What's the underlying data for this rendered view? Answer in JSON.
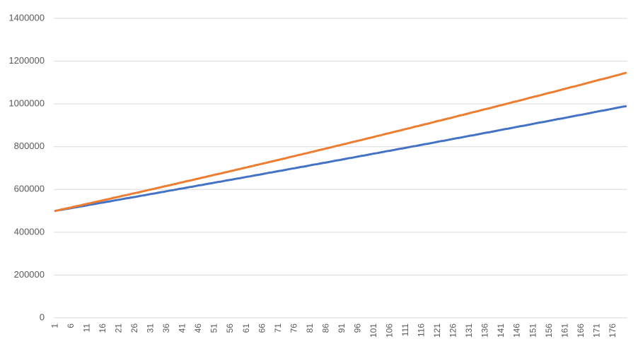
{
  "chart_data": {
    "type": "line",
    "categories": [
      1,
      null,
      null,
      null,
      null,
      6,
      null,
      null,
      null,
      null,
      11,
      null,
      null,
      null,
      null,
      16,
      null,
      null,
      null,
      null,
      21,
      null,
      null,
      null,
      null,
      26,
      null,
      null,
      null,
      null,
      31,
      null,
      null,
      null,
      null,
      36,
      null,
      null,
      null,
      null,
      41,
      null,
      null,
      null,
      null,
      46,
      null,
      null,
      null,
      null,
      51,
      null,
      null,
      null,
      null,
      56,
      null,
      null,
      null,
      null,
      61,
      null,
      null,
      null,
      null,
      66,
      null,
      null,
      null,
      null,
      71,
      null,
      null,
      null,
      null,
      76,
      null,
      null,
      null,
      null,
      81,
      null,
      null,
      null,
      null,
      86,
      null,
      null,
      null,
      null,
      91,
      null,
      null,
      null,
      null,
      96,
      null,
      null,
      null,
      null,
      101,
      null,
      null,
      null,
      null,
      106,
      null,
      null,
      null,
      null,
      111,
      null,
      null,
      null,
      null,
      116,
      null,
      null,
      null,
      null,
      121,
      null,
      null,
      null,
      null,
      126,
      null,
      null,
      null,
      null,
      131,
      null,
      null,
      null,
      null,
      136,
      null,
      null,
      null,
      null,
      141,
      null,
      null,
      null,
      null,
      146,
      null,
      null,
      null,
      null,
      151,
      null,
      null,
      null,
      null,
      156,
      null,
      null,
      null,
      null,
      161,
      null,
      null,
      null,
      null,
      166,
      null,
      null,
      null,
      null,
      171,
      null,
      null,
      null,
      null,
      176,
      null,
      null,
      null,
      null
    ],
    "series": [
      {
        "color": "#4472c4",
        "values": [
          500000,
          503000,
          505000,
          508000,
          510000,
          513000,
          516000,
          518000,
          521000,
          523000,
          526000,
          529000,
          531000,
          534000,
          537000,
          539000,
          542000,
          544000,
          547000,
          550000,
          552000,
          555000,
          558000,
          560000,
          563000,
          565000,
          568000,
          571000,
          573000,
          576000,
          579000,
          581000,
          584000,
          587000,
          589000,
          592000,
          595000,
          597000,
          600000,
          603000,
          605000,
          608000,
          611000,
          613000,
          616000,
          619000,
          621000,
          624000,
          627000,
          629000,
          632000,
          635000,
          637000,
          640000,
          643000,
          645000,
          648000,
          651000,
          653000,
          656000,
          659000,
          661000,
          664000,
          667000,
          669000,
          672000,
          675000,
          678000,
          680000,
          683000,
          686000,
          688000,
          691000,
          694000,
          697000,
          699000,
          702000,
          705000,
          707000,
          710000,
          713000,
          716000,
          718000,
          721000,
          724000,
          726000,
          729000,
          732000,
          735000,
          737000,
          740000,
          743000,
          746000,
          748000,
          751000,
          754000,
          757000,
          759000,
          762000,
          765000,
          768000,
          770000,
          773000,
          776000,
          779000,
          781000,
          784000,
          787000,
          790000,
          792000,
          795000,
          798000,
          801000,
          803000,
          806000,
          809000,
          812000,
          814000,
          817000,
          820000,
          823000,
          826000,
          828000,
          831000,
          834000,
          837000,
          840000,
          842000,
          845000,
          848000,
          851000,
          853000,
          856000,
          859000,
          862000,
          865000,
          867000,
          870000,
          873000,
          876000,
          879000,
          882000,
          884000,
          887000,
          890000,
          893000,
          896000,
          898000,
          901000,
          904000,
          907000,
          910000,
          913000,
          915000,
          918000,
          921000,
          924000,
          927000,
          930000,
          932000,
          935000,
          938000,
          941000,
          944000,
          947000,
          949000,
          952000,
          955000,
          958000,
          961000,
          964000,
          967000,
          969000,
          972000,
          975000,
          978000,
          981000,
          984000,
          987000,
          989000
        ]
      },
      {
        "color": "#ed7d31",
        "values": [
          500000,
          503000,
          507000,
          510000,
          513000,
          516000,
          520000,
          523000,
          526000,
          530000,
          533000,
          536000,
          540000,
          543000,
          546000,
          550000,
          553000,
          556000,
          560000,
          563000,
          566000,
          570000,
          573000,
          576000,
          580000,
          583000,
          586000,
          590000,
          593000,
          597000,
          600000,
          603000,
          607000,
          610000,
          614000,
          617000,
          620000,
          624000,
          627000,
          631000,
          634000,
          638000,
          641000,
          644000,
          648000,
          651000,
          655000,
          658000,
          662000,
          665000,
          669000,
          672000,
          675000,
          679000,
          682000,
          686000,
          689000,
          693000,
          696000,
          700000,
          703000,
          707000,
          710000,
          714000,
          717000,
          721000,
          724000,
          728000,
          731000,
          735000,
          738000,
          742000,
          745000,
          749000,
          753000,
          756000,
          760000,
          763000,
          767000,
          770000,
          774000,
          777000,
          781000,
          785000,
          788000,
          792000,
          795000,
          799000,
          803000,
          806000,
          810000,
          813000,
          817000,
          821000,
          824000,
          828000,
          831000,
          835000,
          839000,
          842000,
          846000,
          850000,
          853000,
          857000,
          861000,
          864000,
          868000,
          872000,
          875000,
          879000,
          883000,
          886000,
          890000,
          894000,
          897000,
          901000,
          905000,
          908000,
          912000,
          916000,
          920000,
          923000,
          927000,
          931000,
          934000,
          938000,
          942000,
          946000,
          949000,
          953000,
          957000,
          961000,
          964000,
          968000,
          972000,
          976000,
          979000,
          983000,
          987000,
          991000,
          994000,
          998000,
          1002000,
          1006000,
          1010000,
          1013000,
          1017000,
          1021000,
          1025000,
          1029000,
          1033000,
          1036000,
          1040000,
          1044000,
          1048000,
          1052000,
          1055000,
          1059000,
          1063000,
          1067000,
          1071000,
          1075000,
          1079000,
          1082000,
          1086000,
          1090000,
          1094000,
          1098000,
          1102000,
          1106000,
          1110000,
          1114000,
          1117000,
          1121000,
          1125000,
          1129000,
          1133000,
          1137000,
          1141000,
          1145000
        ]
      }
    ],
    "ylim": [
      0,
      1400000
    ],
    "yticks": [
      0,
      200000,
      400000,
      600000,
      800000,
      1000000,
      1200000,
      1400000
    ],
    "grid": true
  }
}
